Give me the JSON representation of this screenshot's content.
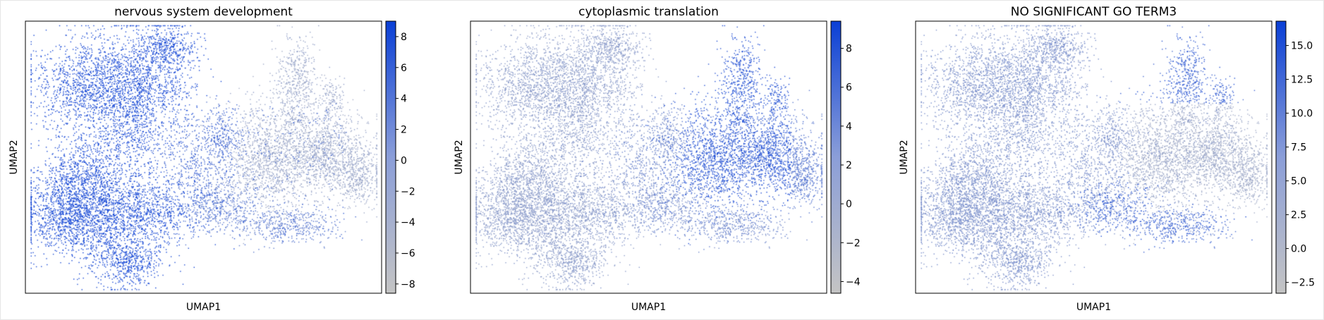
{
  "chart_data": [
    {
      "type": "scatter",
      "title": "nervous system development",
      "xlabel": "UMAP1",
      "ylabel": "UMAP2",
      "x_ticks": "none",
      "y_ticks": "none",
      "grid": false,
      "colorbar": {
        "range": [
          -8.6,
          9.0
        ],
        "ticks": [
          8,
          6,
          4,
          2,
          0,
          -2,
          -4,
          -6,
          -8
        ],
        "tick_labels": [
          "8",
          "6",
          "4",
          "2",
          "0",
          "−2",
          "−4",
          "−6",
          "−8"
        ]
      },
      "color_low": "#c4c4c4",
      "color_high": "#0a3fd6",
      "pattern": "high on left clusters, low on right clusters"
    },
    {
      "type": "scatter",
      "title": "cytoplasmic translation",
      "xlabel": "UMAP1",
      "ylabel": "UMAP2",
      "x_ticks": "none",
      "y_ticks": "none",
      "grid": false,
      "colorbar": {
        "range": [
          -4.6,
          9.4
        ],
        "ticks": [
          8,
          6,
          4,
          2,
          0,
          -2,
          -4
        ],
        "tick_labels": [
          "8",
          "6",
          "4",
          "2",
          "0",
          "−2",
          "−4"
        ]
      },
      "color_low": "#c4c4c4",
      "color_high": "#0a3fd6",
      "pattern": "high in central-right cluster and upper-right arm"
    },
    {
      "type": "scatter",
      "title": "NO SIGNIFICANT GO TERM3",
      "xlabel": "UMAP1",
      "ylabel": "UMAP2",
      "x_ticks": "none",
      "y_ticks": "none",
      "grid": false,
      "colorbar": {
        "range": [
          -3.3,
          16.8
        ],
        "ticks": [
          15.0,
          12.5,
          10.0,
          7.5,
          5.0,
          2.5,
          0.0,
          -2.5
        ],
        "tick_labels": [
          "15.0",
          "12.5",
          "10.0",
          "7.5",
          "5.0",
          "2.5",
          "0.0",
          "−2.5"
        ]
      },
      "color_low": "#c4c4c4",
      "color_high": "#0a3fd6",
      "pattern": "mostly low, high in small lower-middle and upper-middle patches"
    }
  ]
}
